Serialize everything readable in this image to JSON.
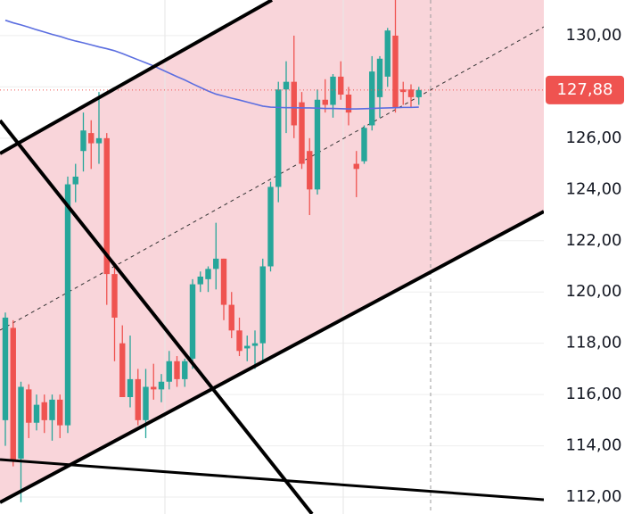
{
  "chart_data": {
    "type": "candlestick",
    "open": [
      115,
      118.6,
      113.5,
      116.2,
      114.9,
      115.7,
      115.0,
      115.8,
      114.8,
      124.2,
      125.5,
      126.2,
      125.8,
      126.0,
      120.7,
      118.0,
      115.9,
      116.6,
      115.0,
      116.3,
      116.2,
      116.5,
      117.3,
      116.6,
      117.4,
      120.3,
      120.5,
      120.9,
      121.3,
      119.5,
      118.5,
      117.8,
      117.9,
      118.0,
      121.0,
      124.1,
      127.9,
      128.2,
      127.4,
      125.5,
      124.0,
      127.5,
      127.3,
      128.4,
      127.7,
      125.0,
      125.1,
      126.5,
      127.6,
      128.4,
      130.0,
      127.9,
      127.9,
      127.6
    ],
    "high": [
      119.2,
      118.9,
      116.5,
      116.4,
      116.0,
      116.0,
      116.0,
      116.0,
      124.5,
      125.0,
      127.0,
      126.7,
      127.8,
      126.2,
      121.0,
      118.7,
      118.3,
      117.0,
      117.0,
      117.2,
      116.8,
      117.7,
      117.5,
      117.4,
      120.5,
      120.8,
      121.0,
      122.7,
      121.3,
      120.0,
      119.0,
      118.3,
      118.5,
      121.3,
      124.3,
      128.2,
      129.0,
      130.0,
      127.8,
      126.0,
      127.9,
      128.3,
      128.5,
      129.0,
      128.0,
      125.5,
      126.5,
      129.2,
      129.2,
      130.3,
      131.4,
      128.2,
      128.1,
      128.0
    ],
    "low": [
      114.0,
      113.2,
      111.8,
      114.3,
      114.6,
      114.5,
      114.2,
      114.3,
      114.5,
      123.5,
      124.7,
      124.8,
      125.0,
      119.5,
      117.3,
      116.0,
      115.5,
      114.8,
      114.3,
      115.8,
      115.7,
      116.2,
      116.3,
      116.3,
      117.0,
      120.0,
      120.0,
      120.1,
      118.9,
      118.2,
      117.5,
      117.3,
      117.0,
      117.2,
      120.8,
      123.5,
      126.2,
      126.0,
      124.8,
      123.0,
      123.8,
      127.0,
      126.8,
      127.5,
      126.5,
      123.7,
      125.0,
      126.3,
      126.8,
      128.0,
      127.0,
      127.3,
      127.2,
      127.3
    ],
    "close": [
      119.0,
      113.4,
      116.3,
      114.9,
      115.6,
      115.0,
      115.8,
      114.8,
      124.2,
      124.5,
      126.3,
      125.8,
      126.0,
      120.7,
      119.0,
      115.9,
      116.6,
      115.0,
      116.3,
      116.2,
      116.5,
      117.3,
      116.6,
      117.3,
      120.3,
      120.6,
      120.9,
      121.3,
      119.5,
      118.5,
      117.7,
      117.9,
      118.0,
      121.0,
      124.1,
      127.9,
      128.2,
      126.5,
      125.0,
      124.0,
      127.5,
      127.3,
      128.4,
      127.7,
      127.0,
      124.8,
      126.4,
      128.6,
      129.1,
      130.2,
      127.2,
      127.8,
      127.6,
      127.88
    ],
    "ma": [
      130.6,
      130.5,
      130.42,
      130.33,
      130.23,
      130.14,
      130.05,
      129.97,
      129.87,
      129.79,
      129.72,
      129.64,
      129.56,
      129.49,
      129.41,
      129.3,
      129.18,
      129.06,
      128.94,
      128.82,
      128.68,
      128.54,
      128.4,
      128.27,
      128.12,
      127.98,
      127.84,
      127.72,
      127.64,
      127.56,
      127.49,
      127.41,
      127.33,
      127.25,
      127.21,
      127.2,
      127.19,
      127.19,
      127.18,
      127.18,
      127.17,
      127.16,
      127.16,
      127.15,
      127.14,
      127.14,
      127.15,
      127.16,
      127.17,
      127.18,
      127.19,
      127.2,
      127.2,
      127.21
    ],
    "up_color": "#26a69a",
    "down_color": "#ef5350",
    "ma_color": "#5b6ee0",
    "ylim": [
      111.34,
      131.39
    ],
    "yticks": [
      {
        "value": 112,
        "label": "112,00"
      },
      {
        "value": 114,
        "label": "114,00"
      },
      {
        "value": 116,
        "label": "116,00"
      },
      {
        "value": 118,
        "label": "118,00"
      },
      {
        "value": 120,
        "label": "120,00"
      },
      {
        "value": 122,
        "label": "122,00"
      },
      {
        "value": 124,
        "label": "124,00"
      },
      {
        "value": 126,
        "label": "126,00"
      },
      {
        "value": 128,
        "label": "128,00"
      },
      {
        "value": 130,
        "label": "130,00"
      }
    ],
    "last_price": {
      "value": 127.88,
      "label": "127,88"
    },
    "grid": true
  }
}
